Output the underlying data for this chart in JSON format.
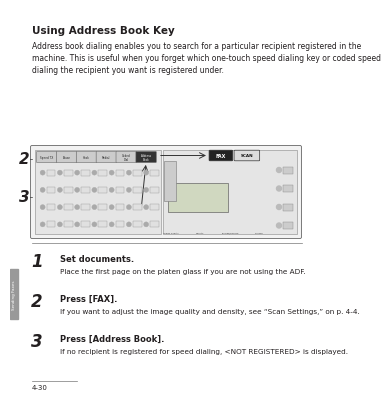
{
  "title": "Using Address Book Key",
  "title_fontsize": 7.5,
  "intro_text": "Address book dialing enables you to search for a particular recipient registered in the\nmachine. This is useful when you forget which one-touch speed dialing key or coded speed\ndialing the recipient you want is registered under.",
  "intro_fontsize": 5.5,
  "steps": [
    {
      "number": "1",
      "heading": "Set documents.",
      "detail": "Place the first page on the platen glass if you are not using the ADF."
    },
    {
      "number": "2",
      "heading": "Press [FAX].",
      "detail": "If you want to adjust the image quality and density, see “Scan Settings,” on p. 4-4."
    },
    {
      "number": "3",
      "heading": "Press [Address Book].",
      "detail": "If no recipient is registered for speed dialing, <NOT REGISTERED> is displayed."
    }
  ],
  "step_number_fontsize": 12,
  "step_heading_fontsize": 6.0,
  "step_detail_fontsize": 5.2,
  "sidebar_text": "Sending Faxes",
  "page_number": "4-30",
  "bg_color": "#ffffff",
  "text_color": "#231f20"
}
